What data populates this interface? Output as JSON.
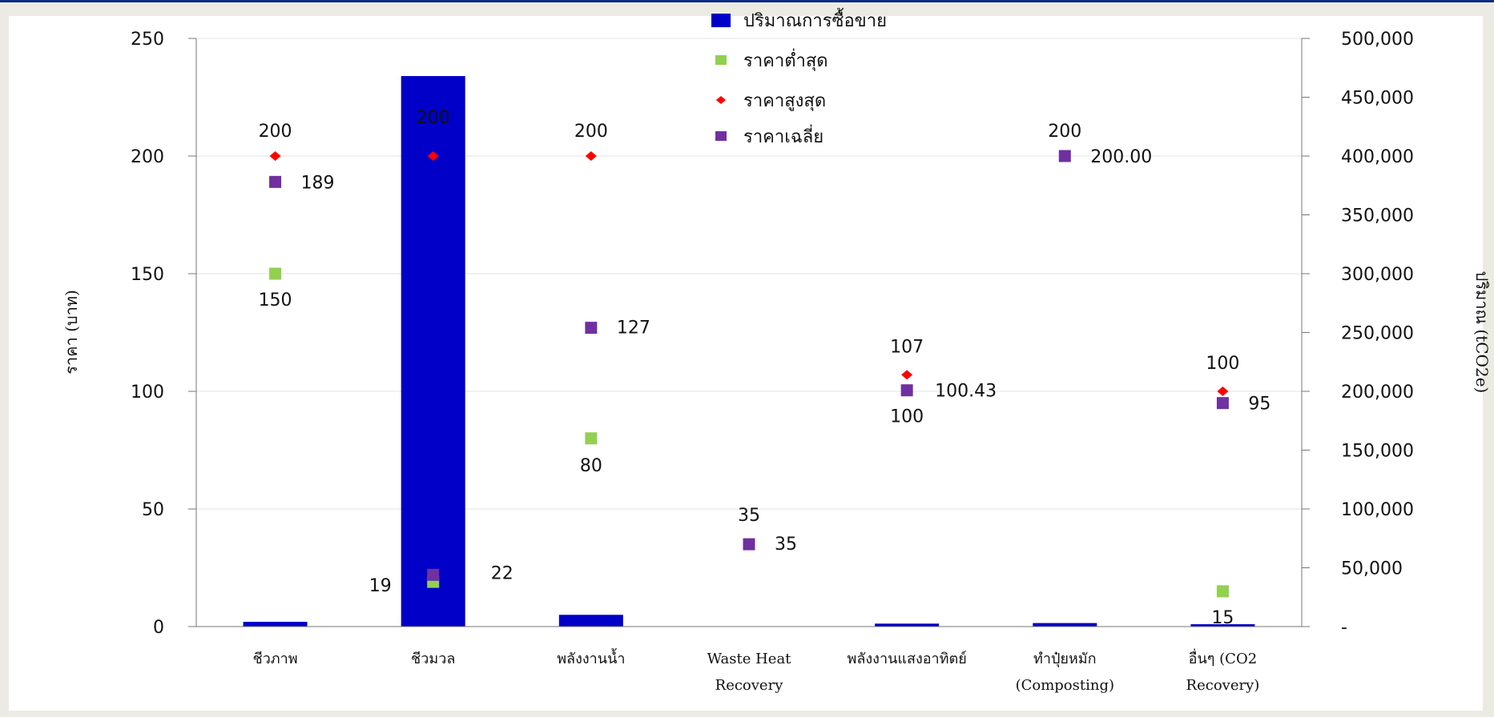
{
  "chart_data": {
    "type": "bar",
    "categories": [
      [
        "ชีวภาพ"
      ],
      [
        "ชีวมวล"
      ],
      [
        "พลังงานน้ำ"
      ],
      [
        "Waste Heat",
        "Recovery"
      ],
      [
        "พลังงานแสงอาทิตย์"
      ],
      [
        "ทำปุ๋ยหมัก",
        "(Composting)"
      ],
      [
        "อื่นๆ (CO2",
        "Recovery)"
      ]
    ],
    "series": [
      {
        "name": "ปริมาณการซื้อขาย",
        "kind": "bar",
        "axis": "right",
        "color": "#0000c8",
        "values": [
          4000,
          468000,
          10000,
          0,
          2500,
          3000,
          2000
        ]
      },
      {
        "name": "ราคาต่ำสุด",
        "kind": "marker",
        "marker": "square",
        "axis": "left",
        "color": "#92d050",
        "values": [
          150,
          19,
          80,
          null,
          null,
          null,
          15
        ],
        "labels": [
          "150",
          "19",
          "80",
          null,
          null,
          null,
          "15"
        ]
      },
      {
        "name": "ราคาสูงสุด",
        "kind": "marker",
        "marker": "diamond",
        "axis": "left",
        "color": "#ff0000",
        "values": [
          200,
          200,
          200,
          null,
          107,
          null,
          100
        ],
        "labels": [
          "200",
          "200",
          "200",
          "35",
          "107",
          "200",
          "100"
        ]
      },
      {
        "name": "ราคาเฉลี่ย",
        "kind": "marker",
        "marker": "square",
        "axis": "left",
        "color": "#7030a0",
        "values": [
          189,
          22,
          127,
          35,
          100.43,
          200,
          95
        ],
        "labels": [
          "189",
          "22",
          "127",
          "35",
          "100.43",
          "200.00",
          "95"
        ]
      }
    ],
    "left_axis": {
      "label": "ราคา (บาท)",
      "min": 0,
      "max": 250,
      "step": 50,
      "ticks": [
        "0",
        "50",
        "100",
        "150",
        "200",
        "250"
      ]
    },
    "right_axis": {
      "label": "ปริมาณ (tCO2e)",
      "min": 0,
      "max": 500000,
      "step": 50000,
      "ticks": [
        "-",
        "50,000",
        "100,000",
        "150,000",
        "200,000",
        "250,000",
        "300,000",
        "350,000",
        "400,000",
        "450,000",
        "500,000"
      ]
    },
    "grid": true,
    "legend_position": "top-center"
  }
}
